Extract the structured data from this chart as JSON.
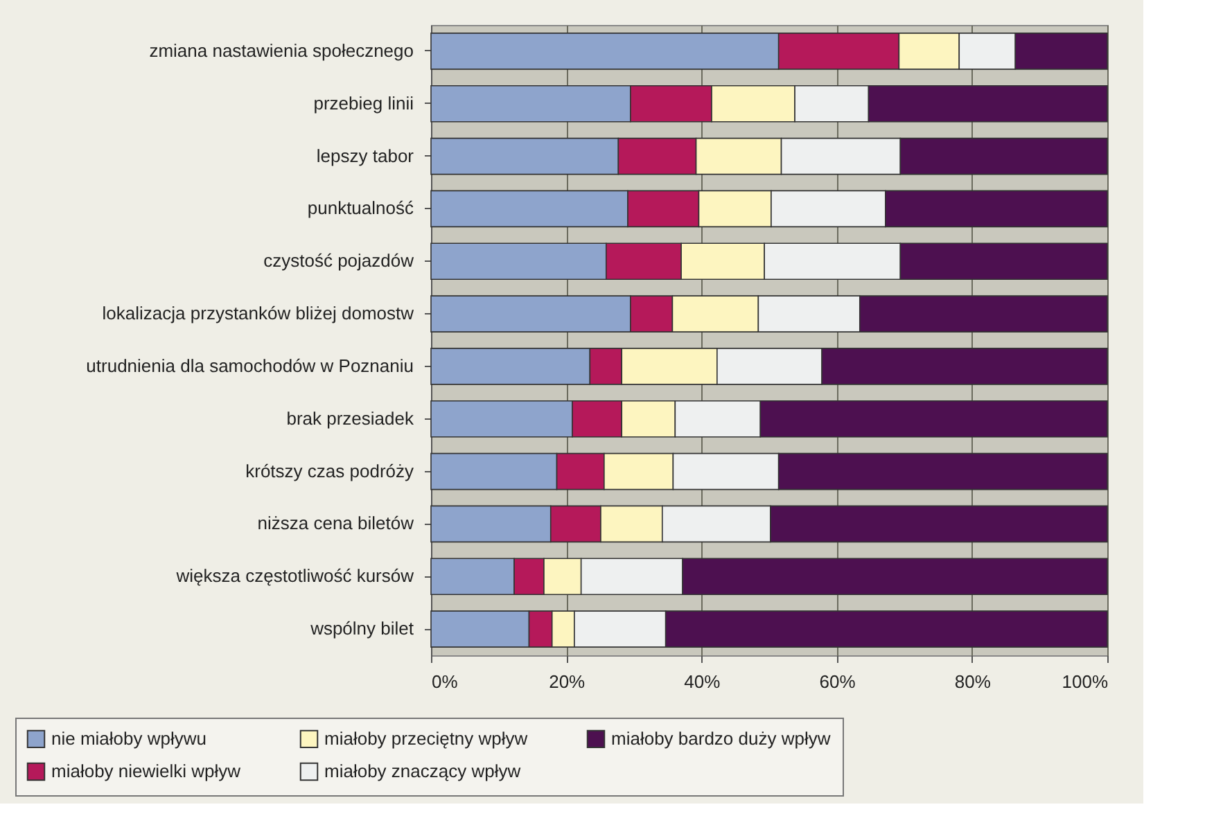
{
  "chart_data": {
    "type": "bar",
    "orientation": "horizontal",
    "stacked": true,
    "categories": [
      "zmiana nastawienia społecznego",
      "przebieg linii",
      "lepszy tabor",
      "punktualność",
      "czystość pojazdów",
      "lokalizacja przystanków bliżej domostw",
      "utrudnienia dla samochodów w Poznaniu",
      "brak przesiadek",
      "krótszy czas podróży",
      "niższa cena biletów",
      "większa częstotliwość kursów",
      "wspólny bilet"
    ],
    "series": [
      {
        "name": "nie miałoby wpływu",
        "color": "#8ea4cc",
        "values": [
          51.4,
          29.5,
          27.7,
          29.1,
          25.9,
          29.5,
          23.5,
          20.9,
          18.6,
          17.7,
          12.3,
          14.5
        ]
      },
      {
        "name": "miałoby niewielki wpływ",
        "color": "#b5195a",
        "values": [
          17.8,
          12.0,
          11.5,
          10.5,
          11.1,
          6.2,
          4.7,
          7.3,
          7.0,
          7.4,
          4.4,
          3.4
        ]
      },
      {
        "name": "miałoby przeciętny wpływ",
        "color": "#fdf5c0",
        "values": [
          8.9,
          12.3,
          12.6,
          10.7,
          12.3,
          12.7,
          14.1,
          7.9,
          10.2,
          9.1,
          5.5,
          3.3
        ]
      },
      {
        "name": "miałoby znaczący wpływ",
        "color": "#eef0f0",
        "values": [
          8.3,
          10.9,
          17.6,
          16.9,
          20.1,
          15.0,
          15.5,
          12.6,
          15.6,
          16.0,
          15.0,
          13.5
        ]
      },
      {
        "name": "miałoby bardzo duży wpływ",
        "color": "#4d1050",
        "values": [
          13.6,
          35.3,
          30.6,
          32.8,
          30.6,
          36.6,
          42.2,
          51.3,
          48.6,
          49.8,
          62.8,
          65.3
        ]
      }
    ],
    "xlim": [
      0,
      100
    ],
    "xticks": [
      {
        "value": 0,
        "label": "0%"
      },
      {
        "value": 20,
        "label": "20%"
      },
      {
        "value": 40,
        "label": "40%"
      },
      {
        "value": 60,
        "label": "60%"
      },
      {
        "value": 80,
        "label": "80%"
      },
      {
        "value": 100,
        "label": "100%"
      }
    ],
    "grid": "x",
    "legend": "bottom"
  }
}
